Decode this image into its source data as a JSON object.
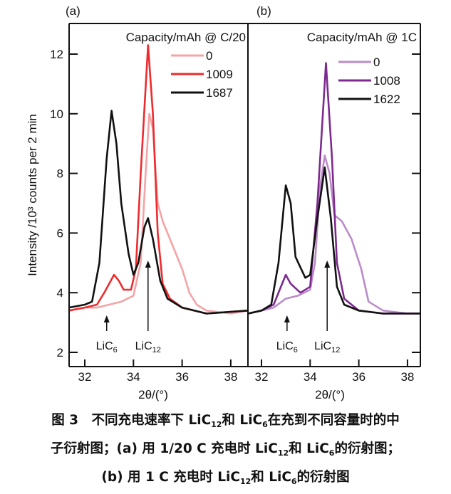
{
  "figure": {
    "ylabel": "Intensity /10³ counts per 2 min",
    "caption": [
      [
        {
          "t": "图 3　不同充电速率下 LiC"
        },
        {
          "t": "12",
          "sub": true
        },
        {
          "t": "和 LiC"
        },
        {
          "t": "6",
          "sub": true
        },
        {
          "t": "在充到不同容量时的中"
        }
      ],
      [
        {
          "t": "子衍射图；(a) 用 1/20 C 充电时 LiC"
        },
        {
          "t": "12",
          "sub": true
        },
        {
          "t": "和 LiC"
        },
        {
          "t": "6",
          "sub": true
        },
        {
          "t": "的衍射图；"
        }
      ],
      [
        {
          "t": "(b) 用 1 C 充电时 LiC"
        },
        {
          "t": "12",
          "sub": true
        },
        {
          "t": "和 LiC"
        },
        {
          "t": "6",
          "sub": true
        },
        {
          "t": "的衍射图"
        }
      ]
    ]
  },
  "chart_data": [
    {
      "type": "line",
      "panel_label": "(a)",
      "legend_title": "Capacity/mAh @ C/20",
      "legend_placement": "top-right",
      "xlabel": "2θ/(°)",
      "ylabel": "Intensity /10³ counts per 2 min",
      "xlim": [
        31.35,
        38.7
      ],
      "ylim": [
        1.5,
        13.0
      ],
      "xticks": [
        32,
        34,
        36,
        38
      ],
      "yticks": [
        2,
        4,
        6,
        8,
        10,
        12
      ],
      "annotations": [
        {
          "text": "LiC",
          "sub": "6",
          "x": 32.9
        },
        {
          "text": "LiC",
          "sub": "12",
          "x": 34.6
        }
      ],
      "series": [
        {
          "name": "0",
          "color": "#f4a3a6",
          "x": [
            31.35,
            32,
            32.5,
            33,
            33.5,
            34,
            34.3,
            34.5,
            34.65,
            34.8,
            35,
            35.2,
            35.5,
            36,
            36.3,
            36.6,
            37,
            38,
            38.7
          ],
          "y": [
            3.4,
            3.5,
            3.5,
            3.6,
            3.7,
            3.9,
            5,
            8,
            10.0,
            9.5,
            7.0,
            6.4,
            5.8,
            4.8,
            4.0,
            3.6,
            3.4,
            3.3,
            3.4
          ]
        },
        {
          "name": "1009",
          "color": "#ee2b2e",
          "x": [
            31.35,
            32,
            32.5,
            32.8,
            33,
            33.2,
            33.4,
            33.6,
            33.9,
            34.1,
            34.3,
            34.6,
            34.8,
            35,
            35.2,
            35.5,
            36,
            37,
            38.7
          ],
          "y": [
            3.4,
            3.5,
            3.6,
            4.0,
            4.3,
            4.6,
            4.4,
            4.1,
            4.1,
            4.8,
            8,
            12.3,
            10,
            6,
            4.3,
            3.8,
            3.5,
            3.3,
            3.4
          ]
        },
        {
          "name": "1687",
          "color": "#111111",
          "x": [
            31.35,
            32,
            32.3,
            32.6,
            32.9,
            33.1,
            33.3,
            33.5,
            33.8,
            34,
            34.2,
            34.45,
            34.6,
            34.8,
            35.1,
            35.4,
            36,
            37,
            38.7
          ],
          "y": [
            3.5,
            3.6,
            3.7,
            5,
            8.5,
            10.1,
            9,
            7,
            5.3,
            4.6,
            5,
            6.2,
            6.5,
            5.8,
            4.4,
            3.8,
            3.5,
            3.3,
            3.4
          ]
        }
      ]
    },
    {
      "type": "line",
      "panel_label": "(b)",
      "legend_title": "Capacity/mAh @ 1C",
      "legend_placement": "top-right",
      "xlabel": "2θ/(°)",
      "xlim": [
        31.45,
        38.5
      ],
      "ylim": [
        1.5,
        13.0
      ],
      "xticks": [
        32,
        34,
        36,
        38
      ],
      "annotations": [
        {
          "text": "LiC",
          "sub": "6",
          "x": 33.05
        },
        {
          "text": "LiC",
          "sub": "12",
          "x": 34.7
        }
      ],
      "series": [
        {
          "name": "0",
          "color": "#bb8cc9",
          "x": [
            31.45,
            32,
            32.5,
            33,
            33.5,
            34,
            34.2,
            34.4,
            34.6,
            34.8,
            35,
            35.3,
            35.7,
            36.1,
            36.4,
            37,
            38,
            38.5
          ],
          "y": [
            3.3,
            3.4,
            3.5,
            3.8,
            3.9,
            4.1,
            5,
            7.5,
            8.6,
            8,
            6.6,
            6.4,
            5.8,
            4.8,
            3.7,
            3.4,
            3.3,
            3.3
          ]
        },
        {
          "name": "1008",
          "color": "#7d2a8e",
          "x": [
            31.45,
            32,
            32.5,
            32.8,
            33,
            33.2,
            33.6,
            34,
            34.3,
            34.65,
            34.9,
            35.1,
            35.4,
            36,
            37,
            38.5
          ],
          "y": [
            3.3,
            3.4,
            3.6,
            4.2,
            4.6,
            4.3,
            4.0,
            4.2,
            7,
            11.7,
            8.5,
            5,
            3.8,
            3.4,
            3.3,
            3.3
          ]
        },
        {
          "name": "1622",
          "color": "#111111",
          "x": [
            31.45,
            32,
            32.4,
            32.7,
            33.0,
            33.2,
            33.4,
            33.8,
            34.0,
            34.3,
            34.6,
            34.85,
            35.1,
            35.4,
            36,
            37,
            38.5
          ],
          "y": [
            3.3,
            3.4,
            3.6,
            5,
            7.6,
            7,
            5.2,
            4.5,
            4.6,
            6.5,
            8.2,
            6.5,
            4.2,
            3.6,
            3.4,
            3.3,
            3.3
          ]
        }
      ]
    }
  ]
}
